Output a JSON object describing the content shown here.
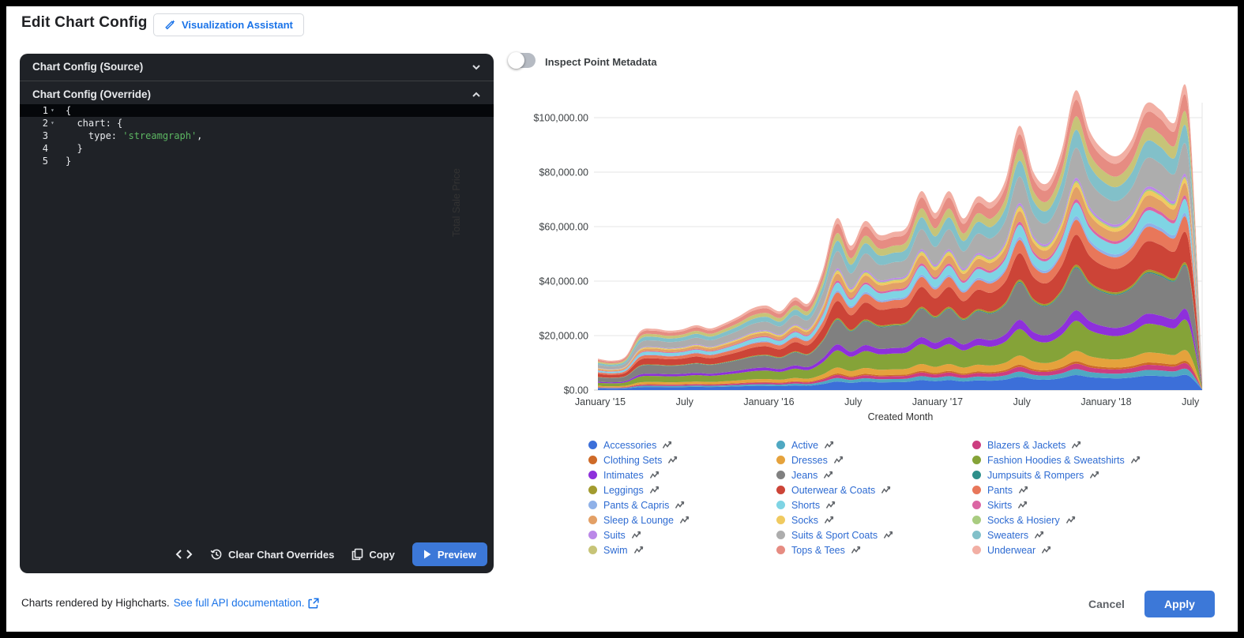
{
  "header": {
    "title": "Edit Chart Config",
    "assistant_button": "Visualization Assistant"
  },
  "editor": {
    "source_section": "Chart Config (Source)",
    "override_section": "Chart Config (Override)",
    "code_lines": [
      {
        "num": "1",
        "fold": true,
        "highlight": true,
        "code": [
          {
            "text": "{",
            "type": "plain"
          }
        ]
      },
      {
        "num": "2",
        "fold": true,
        "highlight": false,
        "code": [
          {
            "text": "  chart: {",
            "type": "plain"
          }
        ]
      },
      {
        "num": "3",
        "fold": false,
        "highlight": false,
        "code": [
          {
            "text": "    type: ",
            "type": "plain"
          },
          {
            "text": "'streamgraph'",
            "type": "string"
          },
          {
            "text": ",",
            "type": "plain"
          }
        ]
      },
      {
        "num": "4",
        "fold": false,
        "highlight": false,
        "code": [
          {
            "text": "  }",
            "type": "plain"
          }
        ]
      },
      {
        "num": "5",
        "fold": false,
        "highlight": false,
        "code": [
          {
            "text": "}",
            "type": "plain"
          }
        ]
      }
    ],
    "toolbar": {
      "clear_label": "Clear Chart Overrides",
      "copy_label": "Copy",
      "preview_label": "Preview"
    }
  },
  "inspect_toggle": {
    "label": "Inspect Point Metadata",
    "state": "off"
  },
  "chart_data": {
    "type": "area",
    "stacking": "normal",
    "xlabel": "Created Month",
    "ylabel": "Total Sale Price",
    "ylim": [
      0,
      110000
    ],
    "grid": "horizontal",
    "legend_position": "bottom",
    "y_tick_labels": [
      "$0.00",
      "$20,000.00",
      "$40,000.00",
      "$60,000.00",
      "$80,000.00",
      "$100,000.00"
    ],
    "y_tick_values_usd": [
      0,
      20000,
      40000,
      60000,
      80000,
      100000
    ],
    "x_tick_labels": [
      "January '15",
      "July",
      "January '16",
      "July",
      "January '17",
      "July",
      "January '18",
      "July"
    ],
    "x_tick_month_index": [
      0,
      6,
      12,
      18,
      24,
      30,
      36,
      42
    ],
    "months": [
      "2015-01",
      "2015-02",
      "2015-03",
      "2015-04",
      "2015-05",
      "2015-06",
      "2015-07",
      "2015-08",
      "2015-09",
      "2015-10",
      "2015-11",
      "2015-12",
      "2016-01",
      "2016-02",
      "2016-03",
      "2016-04",
      "2016-05",
      "2016-06",
      "2016-07",
      "2016-08",
      "2016-09",
      "2016-10",
      "2016-11",
      "2016-12",
      "2017-01",
      "2017-02",
      "2017-03",
      "2017-04",
      "2017-05",
      "2017-06",
      "2017-07",
      "2017-08",
      "2017-09",
      "2017-10",
      "2017-11",
      "2017-12",
      "2018-01",
      "2018-02",
      "2018-03",
      "2018-04",
      "2018-05",
      "2018-06",
      "2018-07",
      "2018-08"
    ],
    "stacked_totals_usd_thousands": [
      11.5,
      10.8,
      12.5,
      21.5,
      22.5,
      21.8,
      22.3,
      23.8,
      22.6,
      24.5,
      27,
      30,
      31,
      29,
      34,
      32,
      44,
      63,
      53,
      62,
      57,
      58,
      60,
      73,
      65,
      73,
      63,
      71,
      69,
      77,
      97,
      80,
      76,
      88,
      110,
      95,
      88,
      86,
      92,
      105,
      103,
      98,
      107,
      5
    ],
    "series_note": "per-month series value approx = share x stacked total; stacked bottom-to-top in listed (alphabetical) order",
    "series": [
      {
        "name": "Accessories",
        "color": "#3c6fd9",
        "share": 0.05
      },
      {
        "name": "Active",
        "color": "#4fa8c2",
        "share": 0.02
      },
      {
        "name": "Blazers & Jackets",
        "color": "#cc3d80",
        "share": 0.018
      },
      {
        "name": "Clothing Sets",
        "color": "#ce6a28",
        "share": 0.008
      },
      {
        "name": "Dresses",
        "color": "#e5a23c",
        "share": 0.035
      },
      {
        "name": "Fashion Hoodies & Sweatshirts",
        "color": "#85a338",
        "share": 0.1
      },
      {
        "name": "Intimates",
        "color": "#8e30db",
        "share": 0.035
      },
      {
        "name": "Jeans",
        "color": "#808080",
        "share": 0.14
      },
      {
        "name": "Jumpsuits & Rompers",
        "color": "#2e8f8a",
        "share": 0.004
      },
      {
        "name": "Leggings",
        "color": "#a29b2f",
        "share": 0.008
      },
      {
        "name": "Outerwear & Coats",
        "color": "#cc4437",
        "share": 0.1
      },
      {
        "name": "Pants",
        "color": "#e8775a",
        "share": 0.05
      },
      {
        "name": "Pants & Capris",
        "color": "#8fb1e8",
        "share": 0.012
      },
      {
        "name": "Shorts",
        "color": "#7fd4e4",
        "share": 0.045
      },
      {
        "name": "Skirts",
        "color": "#db66a4",
        "share": 0.012
      },
      {
        "name": "Sleep & Lounge",
        "color": "#e3a066",
        "share": 0.04
      },
      {
        "name": "Socks",
        "color": "#f0ca60",
        "share": 0.015
      },
      {
        "name": "Socks & Hosiery",
        "color": "#a9cc80",
        "share": 0.006
      },
      {
        "name": "Suits",
        "color": "#bb88e8",
        "share": 0.01
      },
      {
        "name": "Suits & Sport Coats",
        "color": "#adadad",
        "share": 0.1
      },
      {
        "name": "Sweaters",
        "color": "#82c0c9",
        "share": 0.06
      },
      {
        "name": "Swim",
        "color": "#c7c478",
        "share": 0.045
      },
      {
        "name": "Tops & Tees",
        "color": "#e68c82",
        "share": 0.055
      },
      {
        "name": "Underwear",
        "color": "#f2afa4",
        "share": 0.032
      }
    ]
  },
  "footer": {
    "rendered_by": "Charts rendered by Highcharts.",
    "doc_link": "See full API documentation.",
    "cancel_label": "Cancel",
    "apply_label": "Apply"
  },
  "colors": {
    "accent_blue": "#3c78d8",
    "link_blue": "#1a73e8",
    "panel_dark": "#1f2227",
    "code_string_green": "#5cb662"
  }
}
